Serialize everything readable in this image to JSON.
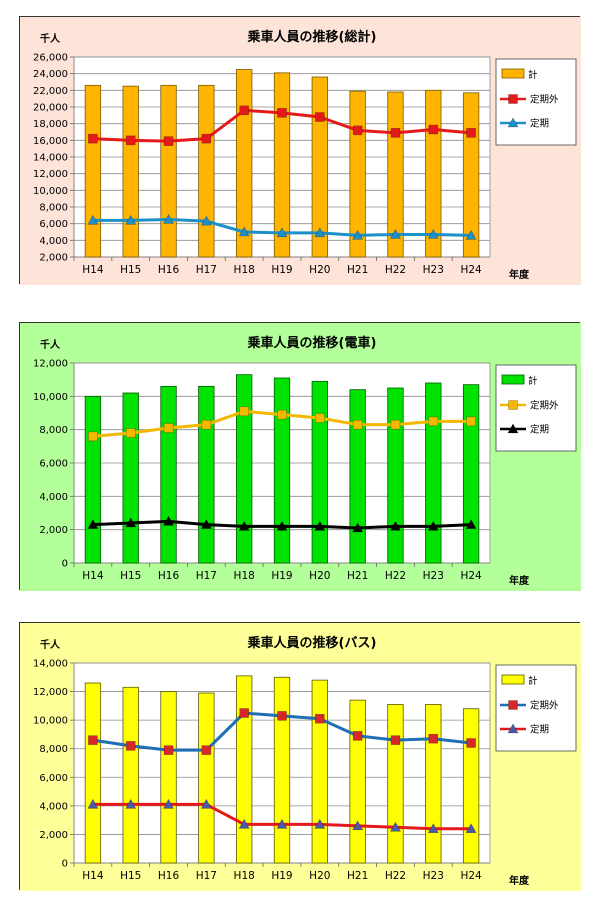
{
  "chart_data": [
    {
      "type": "bar",
      "title": "乗車人員の推移(総計)",
      "ylabel": "千人",
      "xlabel": "年度",
      "categories": [
        "H14",
        "H15",
        "H16",
        "H17",
        "H18",
        "H19",
        "H20",
        "H21",
        "H22",
        "H23",
        "H24"
      ],
      "ylim": [
        2000,
        26000
      ],
      "yticks": [
        "2,000",
        "4,000",
        "6,000",
        "8,000",
        "10,000",
        "12,000",
        "14,000",
        "16,000",
        "18,000",
        "20,000",
        "22,000",
        "24,000",
        "26,000"
      ],
      "grid": true,
      "legend_position": "right",
      "colors": {
        "background": "#fde3d8",
        "bar": "#ffb400",
        "bar_stroke": "#7a5a00",
        "line1": "#e41a1a",
        "line2": "#1e90c8"
      },
      "series": [
        {
          "name": "計",
          "kind": "bar",
          "values": [
            22600,
            22500,
            22600,
            22600,
            24500,
            24100,
            23600,
            21900,
            21800,
            22000,
            21700
          ]
        },
        {
          "name": "定期外",
          "kind": "line",
          "marker": "square",
          "values": [
            16200,
            16000,
            15900,
            16200,
            19600,
            19300,
            18800,
            17200,
            16900,
            17300,
            16900
          ]
        },
        {
          "name": "定期",
          "kind": "line",
          "marker": "triangle",
          "values": [
            6400,
            6400,
            6500,
            6300,
            5000,
            4900,
            4900,
            4600,
            4700,
            4700,
            4600
          ]
        }
      ]
    },
    {
      "type": "bar",
      "title": "乗車人員の推移(電車)",
      "ylabel": "千人",
      "xlabel": "年度",
      "categories": [
        "H14",
        "H15",
        "H16",
        "H17",
        "H18",
        "H19",
        "H20",
        "H21",
        "H22",
        "H23",
        "H24"
      ],
      "ylim": [
        0,
        12000
      ],
      "yticks": [
        "0",
        "2,000",
        "4,000",
        "6,000",
        "8,000",
        "10,000",
        "12,000"
      ],
      "grid": true,
      "legend_position": "right",
      "colors": {
        "background": "#b3ff99",
        "bar": "#00e200",
        "bar_stroke": "#005a00",
        "line1": "#f5b800",
        "line2": "#000000"
      },
      "series": [
        {
          "name": "計",
          "kind": "bar",
          "values": [
            10000,
            10200,
            10600,
            10600,
            11300,
            11100,
            10900,
            10400,
            10500,
            10800,
            10700
          ]
        },
        {
          "name": "定期外",
          "kind": "line",
          "marker": "square",
          "values": [
            7600,
            7800,
            8100,
            8300,
            9100,
            8900,
            8700,
            8300,
            8300,
            8500,
            8500
          ]
        },
        {
          "name": "定期",
          "kind": "line",
          "marker": "triangle",
          "values": [
            2300,
            2400,
            2500,
            2300,
            2200,
            2200,
            2200,
            2100,
            2200,
            2200,
            2300
          ]
        }
      ]
    },
    {
      "type": "bar",
      "title": "乗車人員の推移(バス)",
      "ylabel": "千人",
      "xlabel": "年度",
      "categories": [
        "H14",
        "H15",
        "H16",
        "H17",
        "H18",
        "H19",
        "H20",
        "H21",
        "H22",
        "H23",
        "H24"
      ],
      "ylim": [
        0,
        14000
      ],
      "yticks": [
        "0",
        "2,000",
        "4,000",
        "6,000",
        "8,000",
        "10,000",
        "12,000",
        "14,000"
      ],
      "grid": true,
      "legend_position": "right",
      "colors": {
        "background": "#ffff99",
        "bar": "#ffff00",
        "bar_stroke": "#5a5a00",
        "line1": "#1f6fb4",
        "line2": "#e41a1a"
      },
      "series": [
        {
          "name": "計",
          "kind": "bar",
          "values": [
            12600,
            12300,
            12000,
            11900,
            13100,
            13000,
            12800,
            11400,
            11100,
            11100,
            10800
          ]
        },
        {
          "name": "定期外",
          "kind": "line",
          "marker": "square",
          "values": [
            8600,
            8200,
            7900,
            7900,
            10500,
            10300,
            10100,
            8900,
            8600,
            8700,
            8400
          ]
        },
        {
          "name": "定期",
          "kind": "line",
          "marker": "triangle",
          "values": [
            4100,
            4100,
            4100,
            4100,
            2700,
            2700,
            2700,
            2600,
            2500,
            2400,
            2400
          ]
        }
      ]
    }
  ]
}
